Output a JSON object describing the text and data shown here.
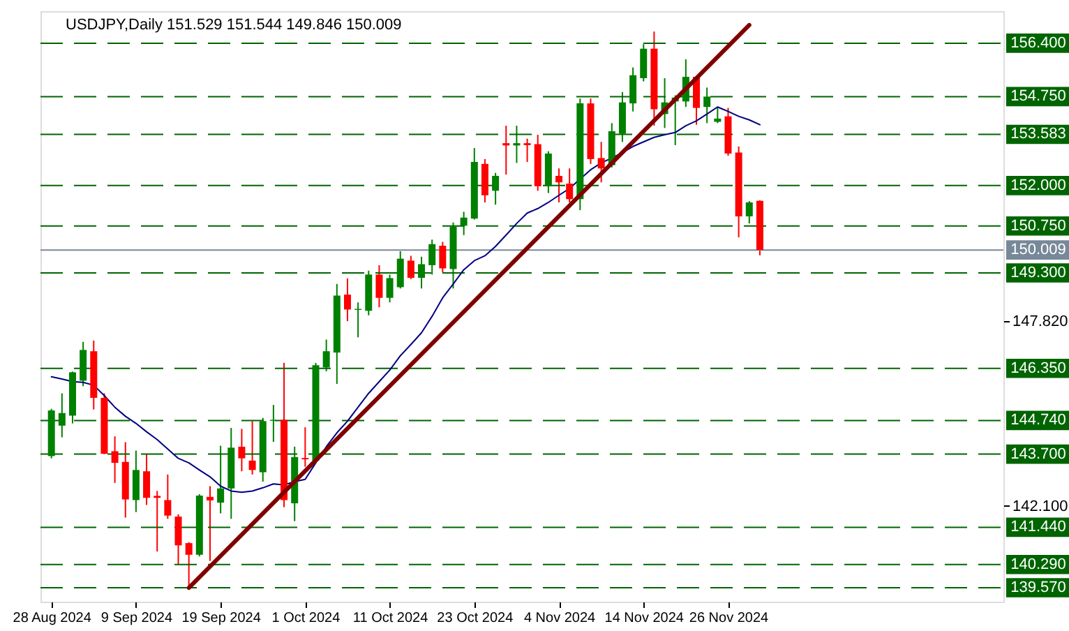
{
  "chart_data": {
    "type": "candlestick",
    "title": "USDJPY,Daily  151.529 151.544 149.846 150.009",
    "categories": [
      "28 Aug 2024",
      null,
      null,
      null,
      null,
      null,
      null,
      null,
      "9 Sep 2024",
      null,
      null,
      null,
      null,
      null,
      null,
      null,
      "19 Sep 2024",
      null,
      null,
      null,
      null,
      null,
      null,
      null,
      "1 Oct 2024",
      null,
      null,
      null,
      null,
      null,
      null,
      null,
      "11 Oct 2024",
      null,
      null,
      null,
      null,
      null,
      null,
      null,
      "23 Oct 2024",
      null,
      null,
      null,
      null,
      null,
      null,
      null,
      "4 Nov 2024",
      null,
      null,
      null,
      null,
      null,
      null,
      null,
      "14 Nov 2024",
      null,
      null,
      null,
      null,
      null,
      null,
      null,
      "26 Nov 2024",
      null,
      null,
      null
    ],
    "ohlc": [
      [
        143.64,
        145.1,
        143.57,
        145.05
      ],
      [
        144.58,
        145.58,
        144.22,
        144.97
      ],
      [
        144.89,
        146.25,
        144.65,
        146.23
      ],
      [
        145.97,
        147.17,
        145.8,
        146.92
      ],
      [
        146.88,
        147.21,
        145.08,
        145.44
      ],
      [
        145.44,
        145.58,
        143.7,
        143.71
      ],
      [
        143.79,
        144.25,
        142.81,
        143.43
      ],
      [
        143.46,
        144.07,
        141.74,
        142.3
      ],
      [
        142.28,
        143.81,
        141.91,
        143.21
      ],
      [
        143.17,
        143.71,
        142.13,
        142.35
      ],
      [
        142.41,
        142.56,
        140.69,
        142.35
      ],
      [
        142.28,
        143.07,
        141.7,
        141.8
      ],
      [
        141.77,
        141.84,
        140.29,
        140.88
      ],
      [
        140.95,
        140.98,
        139.58,
        140.59
      ],
      [
        140.59,
        142.46,
        140.54,
        142.42
      ],
      [
        142.38,
        142.71,
        140.4,
        142.27
      ],
      [
        142.2,
        143.96,
        141.87,
        142.64
      ],
      [
        142.64,
        144.51,
        141.7,
        143.9
      ],
      [
        143.93,
        144.48,
        143.17,
        143.57
      ],
      [
        143.5,
        144.72,
        143.07,
        143.21
      ],
      [
        143.14,
        144.82,
        142.85,
        144.72
      ],
      [
        144.73,
        145.22,
        144.08,
        144.76
      ],
      [
        144.76,
        146.52,
        142.06,
        142.28
      ],
      [
        142.18,
        143.93,
        141.63,
        143.61
      ],
      [
        143.58,
        144.53,
        143.31,
        143.54
      ],
      [
        143.5,
        146.52,
        143.43,
        146.45
      ],
      [
        146.38,
        147.24,
        146.26,
        146.88
      ],
      [
        146.84,
        148.96,
        145.87,
        148.6
      ],
      [
        148.63,
        149.13,
        147.81,
        148.17
      ],
      [
        148.16,
        148.39,
        147.31,
        148.19
      ],
      [
        148.13,
        149.37,
        147.99,
        149.25
      ],
      [
        149.25,
        149.54,
        148.24,
        148.53
      ],
      [
        148.53,
        149.25,
        148.39,
        149.14
      ],
      [
        148.86,
        149.97,
        148.82,
        149.74
      ],
      [
        149.68,
        149.83,
        149.11,
        149.15
      ],
      [
        149.15,
        149.8,
        148.82,
        149.57
      ],
      [
        149.54,
        150.33,
        149.25,
        150.19
      ],
      [
        150.14,
        150.26,
        149.32,
        149.44
      ],
      [
        149.42,
        150.86,
        148.82,
        150.73
      ],
      [
        150.76,
        151.19,
        150.47,
        151.01
      ],
      [
        150.98,
        153.16,
        150.95,
        152.73
      ],
      [
        152.67,
        152.82,
        151.48,
        151.7
      ],
      [
        151.84,
        152.39,
        151.41,
        152.3
      ],
      [
        153.31,
        153.85,
        152.34,
        153.24
      ],
      [
        153.24,
        153.85,
        152.7,
        153.31
      ],
      [
        153.31,
        153.45,
        152.73,
        153.25
      ],
      [
        153.28,
        153.57,
        151.84,
        151.98
      ],
      [
        151.98,
        153.06,
        151.77,
        152.99
      ],
      [
        152.3,
        152.53,
        151.48,
        152.1
      ],
      [
        152.06,
        152.53,
        151.48,
        151.58
      ],
      [
        151.58,
        154.69,
        151.24,
        154.54
      ],
      [
        154.54,
        154.69,
        152.67,
        152.82
      ],
      [
        152.85,
        153.35,
        152.1,
        152.53
      ],
      [
        152.63,
        153.93,
        152.56,
        153.68
      ],
      [
        153.6,
        154.89,
        153.35,
        154.57
      ],
      [
        154.54,
        155.65,
        154.29,
        155.41
      ],
      [
        155.32,
        156.37,
        155.22,
        156.23
      ],
      [
        156.23,
        156.76,
        153.85,
        154.36
      ],
      [
        154.21,
        155.32,
        153.78,
        154.57
      ],
      [
        154.6,
        154.79,
        153.25,
        154.72
      ],
      [
        154.6,
        155.9,
        154.43,
        155.36
      ],
      [
        155.36,
        155.39,
        153.88,
        154.4
      ],
      [
        154.43,
        155.03,
        153.93,
        154.75
      ],
      [
        153.97,
        154.43,
        153.93,
        154.07
      ],
      [
        154.14,
        154.4,
        152.92,
        152.99
      ],
      [
        153.02,
        153.21,
        150.4,
        151.05
      ],
      [
        151.05,
        151.52,
        150.83,
        151.48
      ],
      [
        151.529,
        151.544,
        149.846,
        150.009
      ]
    ],
    "colors": [
      "#008000",
      "#008000",
      "#008000",
      "#008000",
      "#ff0000",
      "#ff0000",
      "#ff0000",
      "#ff0000",
      "#008000",
      "#ff0000",
      "#ff0000",
      "#ff0000",
      "#ff0000",
      "#ff0000",
      "#008000",
      "#ff0000",
      "#008000",
      "#008000",
      "#ff0000",
      "#ff0000",
      "#008000",
      "#008000",
      "#ff0000",
      "#008000",
      "#ff0000",
      "#008000",
      "#008000",
      "#008000",
      "#ff0000",
      "#008000",
      "#008000",
      "#ff0000",
      "#008000",
      "#008000",
      "#ff0000",
      "#008000",
      "#008000",
      "#ff0000",
      "#008000",
      "#008000",
      "#008000",
      "#ff0000",
      "#008000",
      "#ff0000",
      "#008000",
      "#ff0000",
      "#ff0000",
      "#008000",
      "#ff0000",
      "#ff0000",
      "#008000",
      "#ff0000",
      "#ff0000",
      "#008000",
      "#008000",
      "#008000",
      "#008000",
      "#ff0000",
      "#008000",
      "#008000",
      "#008000",
      "#ff0000",
      "#008000",
      "#008000",
      "#ff0000",
      "#ff0000",
      "#008000",
      "#ff0000"
    ],
    "series": [
      {
        "type": "line",
        "color": "#000080",
        "values": [
          146.09,
          146.02,
          145.94,
          145.92,
          145.83,
          145.51,
          145.15,
          144.87,
          144.65,
          144.39,
          144.15,
          143.86,
          143.57,
          143.43,
          143.21,
          143.0,
          142.71,
          142.56,
          142.52,
          142.56,
          142.66,
          142.78,
          142.75,
          142.85,
          142.92,
          143.43,
          143.93,
          144.36,
          144.72,
          145.15,
          145.58,
          145.94,
          146.3,
          146.74,
          147.09,
          147.45,
          147.96,
          148.53,
          148.96,
          149.4,
          149.68,
          149.83,
          150.12,
          150.47,
          150.83,
          151.15,
          151.29,
          151.48,
          151.7,
          151.91,
          152.2,
          152.49,
          152.7,
          152.85,
          153.02,
          153.21,
          153.35,
          153.49,
          153.57,
          153.64,
          153.85,
          154.0,
          154.21,
          154.43,
          154.29,
          154.14,
          154.03,
          153.88
        ]
      },
      {
        "type": "line",
        "color": "#800000",
        "values": [
          null,
          null,
          null,
          null,
          null,
          null,
          null,
          null,
          null,
          null,
          null,
          null,
          null,
          139.57,
          null,
          null,
          null,
          null,
          null,
          null,
          null,
          null,
          null,
          null,
          null,
          null,
          null,
          null,
          null,
          null,
          null,
          null,
          null,
          null,
          null,
          null,
          null,
          null,
          null,
          null,
          null,
          null,
          null,
          null,
          null,
          null,
          null,
          null,
          null,
          null,
          null,
          null,
          null,
          null,
          null,
          null,
          null,
          null,
          null,
          null,
          null,
          null,
          null,
          null,
          null,
          null,
          156.96,
          null
        ]
      }
    ],
    "ylim": [
      139.14,
      157.39
    ],
    "yticks": [
      {
        "value": 142.1,
        "label": "142.100"
      },
      {
        "value": 147.82,
        "label": "147.820"
      }
    ],
    "ref_lines": [
      {
        "axis": "y",
        "value": 156.4,
        "label": "156.400",
        "color": "#006400",
        "line_style": "dashed"
      },
      {
        "axis": "y",
        "value": 154.75,
        "label": "154.750",
        "color": "#006400",
        "line_style": "dashed"
      },
      {
        "axis": "y",
        "value": 153.583,
        "label": "153.583",
        "color": "#006400",
        "line_style": "dashed"
      },
      {
        "axis": "y",
        "value": 152.0,
        "label": "152.000",
        "color": "#006400",
        "line_style": "dashed"
      },
      {
        "axis": "y",
        "value": 150.75,
        "label": "150.750",
        "color": "#006400",
        "line_style": "dashed"
      },
      {
        "axis": "y",
        "value": 150.009,
        "label": "150.009",
        "color": "#778899",
        "line_style": "solid"
      },
      {
        "axis": "y",
        "value": 149.3,
        "label": "149.300",
        "color": "#006400",
        "line_style": "dashed"
      },
      {
        "axis": "y",
        "value": 146.35,
        "label": "146.350",
        "color": "#006400",
        "line_style": "dashed"
      },
      {
        "axis": "y",
        "value": 144.74,
        "label": "144.740",
        "color": "#006400",
        "line_style": "dashed"
      },
      {
        "axis": "y",
        "value": 143.7,
        "label": "143.700",
        "color": "#006400",
        "line_style": "dashed"
      },
      {
        "axis": "y",
        "value": 141.44,
        "label": "141.440",
        "color": "#006400",
        "line_style": "dashed"
      },
      {
        "axis": "y",
        "value": 140.29,
        "label": "140.290",
        "color": "#006400",
        "line_style": "dashed"
      },
      {
        "axis": "y",
        "value": 139.57,
        "label": "139.570",
        "color": "#006400",
        "line_style": "dashed"
      }
    ],
    "grid": false
  }
}
